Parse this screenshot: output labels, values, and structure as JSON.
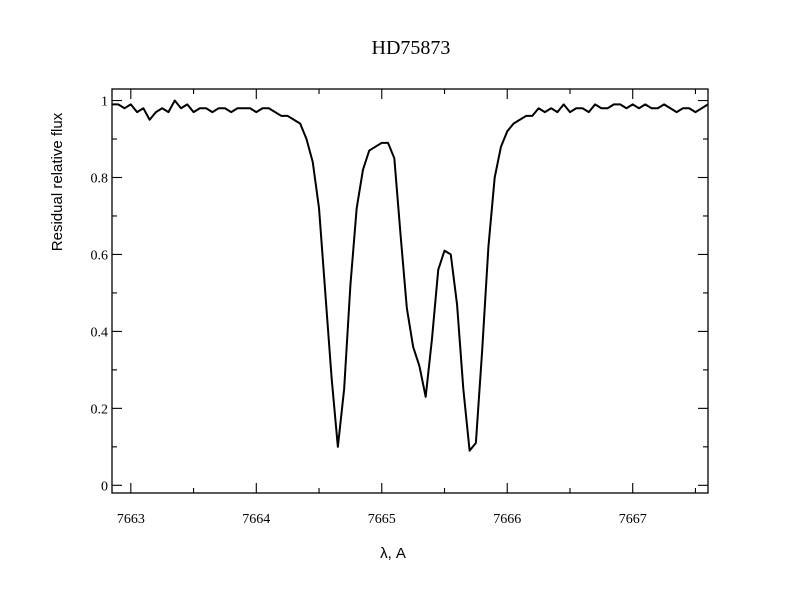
{
  "chart_data": {
    "type": "line",
    "title": "HD75873",
    "xlabel": "λ, A",
    "ylabel": "Residual relative flux",
    "xlim": [
      7662.85,
      7667.6
    ],
    "ylim": [
      -0.02,
      1.03
    ],
    "x_ticks": [
      7663,
      7664,
      7665,
      7666,
      7667
    ],
    "x_tick_labels": [
      "7663",
      "7664",
      "7665",
      "7666",
      "7667"
    ],
    "y_ticks": [
      0,
      0.2,
      0.4,
      0.6,
      0.8,
      1
    ],
    "y_tick_labels": [
      "0",
      "0.2",
      "0.4",
      "0.6",
      "0.8",
      "1"
    ],
    "x_minor_ticks": [
      7663.5,
      7664.5,
      7665.5,
      7666.5,
      7667.5
    ],
    "y_minor_ticks": [
      0.1,
      0.3,
      0.5,
      0.7,
      0.9
    ],
    "grid": false,
    "legend": "none",
    "series": [
      {
        "x": [
          7662.85,
          7662.9,
          7662.95,
          7663.0,
          7663.05,
          7663.1,
          7663.15,
          7663.2,
          7663.25,
          7663.3,
          7663.35,
          7663.4,
          7663.45,
          7663.5,
          7663.55,
          7663.6,
          7663.65,
          7663.7,
          7663.75,
          7663.8,
          7663.85,
          7663.9,
          7663.95,
          7664.0,
          7664.05,
          7664.1,
          7664.15,
          7664.2,
          7664.25,
          7664.3,
          7664.35,
          7664.4,
          7664.45,
          7664.5,
          7664.55,
          7664.6,
          7664.65,
          7664.7,
          7664.75,
          7664.8,
          7664.85,
          7664.9,
          7664.95,
          7665.0,
          7665.05,
          7665.1,
          7665.15,
          7665.2,
          7665.25,
          7665.3,
          7665.35,
          7665.4,
          7665.45,
          7665.5,
          7665.55,
          7665.6,
          7665.65,
          7665.7,
          7665.75,
          7665.8,
          7665.85,
          7665.9,
          7665.95,
          7666.0,
          7666.05,
          7666.1,
          7666.15,
          7666.2,
          7666.25,
          7666.3,
          7666.35,
          7666.4,
          7666.45,
          7666.5,
          7666.55,
          7666.6,
          7666.65,
          7666.7,
          7666.75,
          7666.8,
          7666.85,
          7666.9,
          7666.95,
          7667.0,
          7667.05,
          7667.1,
          7667.15,
          7667.2,
          7667.25,
          7667.3,
          7667.35,
          7667.4,
          7667.45,
          7667.5,
          7667.55,
          7667.6
        ],
        "y": [
          0.99,
          0.99,
          0.98,
          0.99,
          0.97,
          0.98,
          0.95,
          0.97,
          0.98,
          0.97,
          1.0,
          0.98,
          0.99,
          0.97,
          0.98,
          0.98,
          0.97,
          0.98,
          0.98,
          0.97,
          0.98,
          0.98,
          0.98,
          0.97,
          0.98,
          0.98,
          0.97,
          0.96,
          0.96,
          0.95,
          0.94,
          0.9,
          0.84,
          0.72,
          0.5,
          0.28,
          0.1,
          0.25,
          0.52,
          0.72,
          0.82,
          0.87,
          0.88,
          0.89,
          0.89,
          0.85,
          0.65,
          0.46,
          0.36,
          0.31,
          0.23,
          0.38,
          0.56,
          0.61,
          0.6,
          0.47,
          0.25,
          0.09,
          0.11,
          0.35,
          0.62,
          0.8,
          0.88,
          0.92,
          0.94,
          0.95,
          0.96,
          0.96,
          0.98,
          0.97,
          0.98,
          0.97,
          0.99,
          0.97,
          0.98,
          0.98,
          0.97,
          0.99,
          0.98,
          0.98,
          0.99,
          0.99,
          0.98,
          0.99,
          0.98,
          0.99,
          0.98,
          0.98,
          0.99,
          0.98,
          0.97,
          0.98,
          0.98,
          0.97,
          0.98,
          0.99
        ]
      }
    ]
  }
}
